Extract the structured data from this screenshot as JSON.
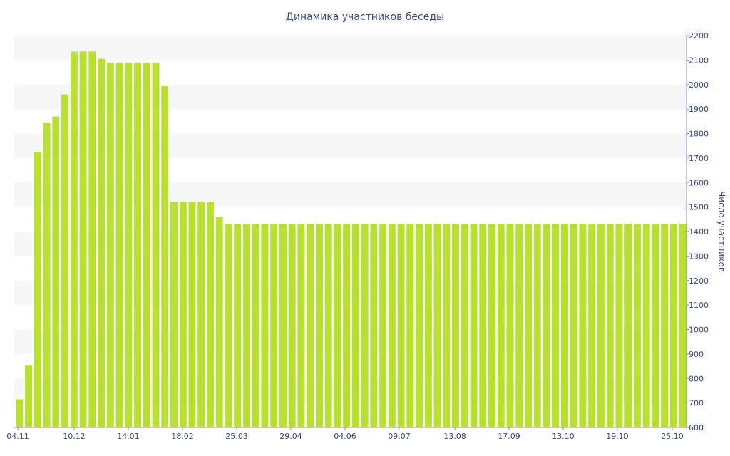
{
  "chart_data": {
    "type": "bar",
    "title": "Динамика участников беседы",
    "ylabel": "Число участников",
    "y_axis_side": "right",
    "ylim": [
      600,
      2200
    ],
    "yticks": [
      600,
      700,
      800,
      900,
      1000,
      1100,
      1200,
      1300,
      1400,
      1500,
      1600,
      1700,
      1800,
      1900,
      2000,
      2100,
      2200
    ],
    "xticks": [
      "04.11",
      "10.12",
      "14.01",
      "18.02",
      "25.03",
      "29.04",
      "04.06",
      "09.07",
      "13.08",
      "17.09",
      "13.10",
      "19.10",
      "25.10"
    ],
    "grid": "alternating horizontal bands",
    "colors": {
      "bar": "#b8e02e",
      "band": "#f7f7f7",
      "text": "#3a4a8a"
    },
    "values": [
      715,
      855,
      1725,
      1845,
      1870,
      1960,
      2135,
      2135,
      2135,
      2105,
      2090,
      2090,
      2090,
      2090,
      2090,
      2090,
      1995,
      1520,
      1520,
      1520,
      1520,
      1520,
      1460,
      1430,
      1430,
      1430,
      1430,
      1430,
      1430,
      1430,
      1430,
      1430,
      1430,
      1430,
      1430,
      1430,
      1430,
      1430,
      1430,
      1430,
      1430,
      1430,
      1430,
      1430,
      1430,
      1430,
      1430,
      1430,
      1430,
      1430,
      1430,
      1430,
      1430,
      1430,
      1430,
      1430,
      1430,
      1430,
      1430,
      1430,
      1430,
      1430,
      1430,
      1430,
      1430,
      1430,
      1430,
      1430,
      1430,
      1430,
      1430,
      1430,
      1430,
      1430
    ]
  }
}
